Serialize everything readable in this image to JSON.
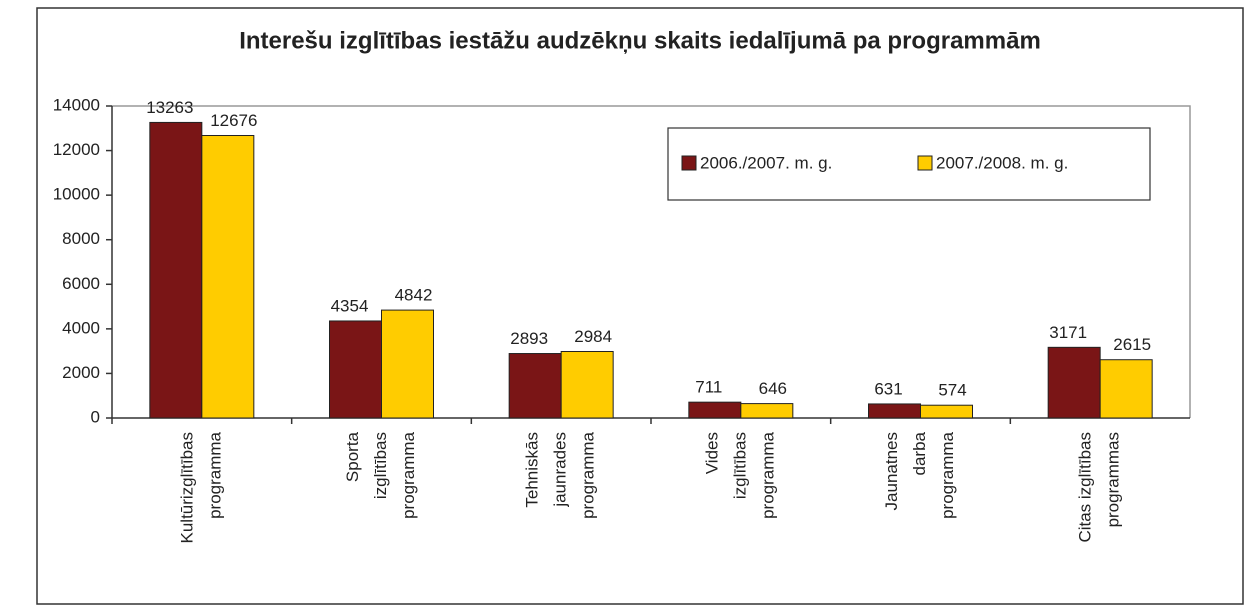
{
  "chart_data": {
    "type": "bar",
    "title": "Interešu izglītības iestāžu audzēkņu skaits iedalījumā pa programmām",
    "categories": [
      [
        "Kultūrizglītības",
        "programma"
      ],
      [
        "Sporta",
        "izglītības",
        "programma"
      ],
      [
        "Tehniskās",
        "jaunrades",
        "programma"
      ],
      [
        "Vides",
        "izglītības",
        "programma"
      ],
      [
        "Jaunatnes",
        "darba",
        "programma"
      ],
      [
        "Citas izglītības",
        "programmas"
      ]
    ],
    "series": [
      {
        "name": "2006./2007. m. g.",
        "color": "#7a1516",
        "values": [
          13263,
          4354,
          2893,
          711,
          631,
          3171
        ]
      },
      {
        "name": "2007./2008. m. g.",
        "color": "#ffcc00",
        "values": [
          12676,
          4842,
          2984,
          646,
          574,
          2615
        ]
      }
    ],
    "ylim": [
      0,
      14000
    ],
    "yticks": [
      0,
      2000,
      4000,
      6000,
      8000,
      10000,
      12000,
      14000
    ],
    "legend": "top-right"
  }
}
